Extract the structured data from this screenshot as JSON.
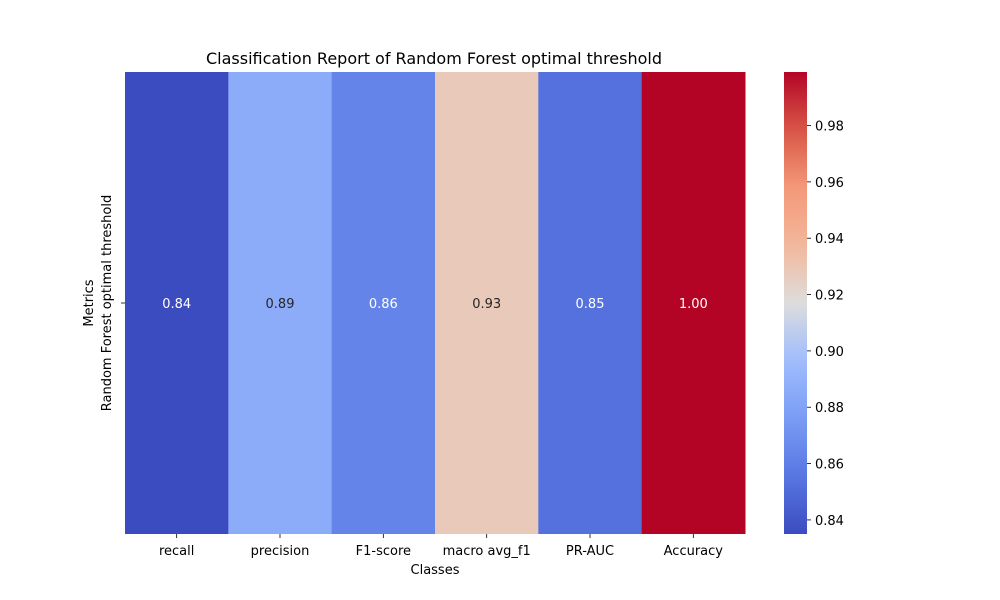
{
  "chart_data": {
    "type": "heatmap",
    "title": "Classification Report of Random Forest optimal threshold",
    "xlabel": "Classes",
    "ylabel": "Metrics",
    "categories": [
      "recall",
      "precision",
      "F1-score",
      "macro avg_f1",
      "PR-AUC",
      "Accuracy"
    ],
    "rows": [
      "Random Forest optimal threshold"
    ],
    "values": [
      [
        0.835,
        0.886,
        0.863,
        0.928,
        0.853,
        0.999
      ]
    ],
    "cell_labels": [
      "0.84",
      "0.89",
      "0.86",
      "0.93",
      "0.85",
      "1.00"
    ],
    "colormap": "coolwarm",
    "colorbar": {
      "vmin": 0.835,
      "vmax": 0.999,
      "ticks": [
        0.84,
        0.86,
        0.88,
        0.9,
        0.92,
        0.94,
        0.96,
        0.98
      ],
      "tick_labels": [
        "0.84",
        "0.86",
        "0.88",
        "0.90",
        "0.92",
        "0.94",
        "0.96",
        "0.98"
      ]
    },
    "grid": false
  }
}
